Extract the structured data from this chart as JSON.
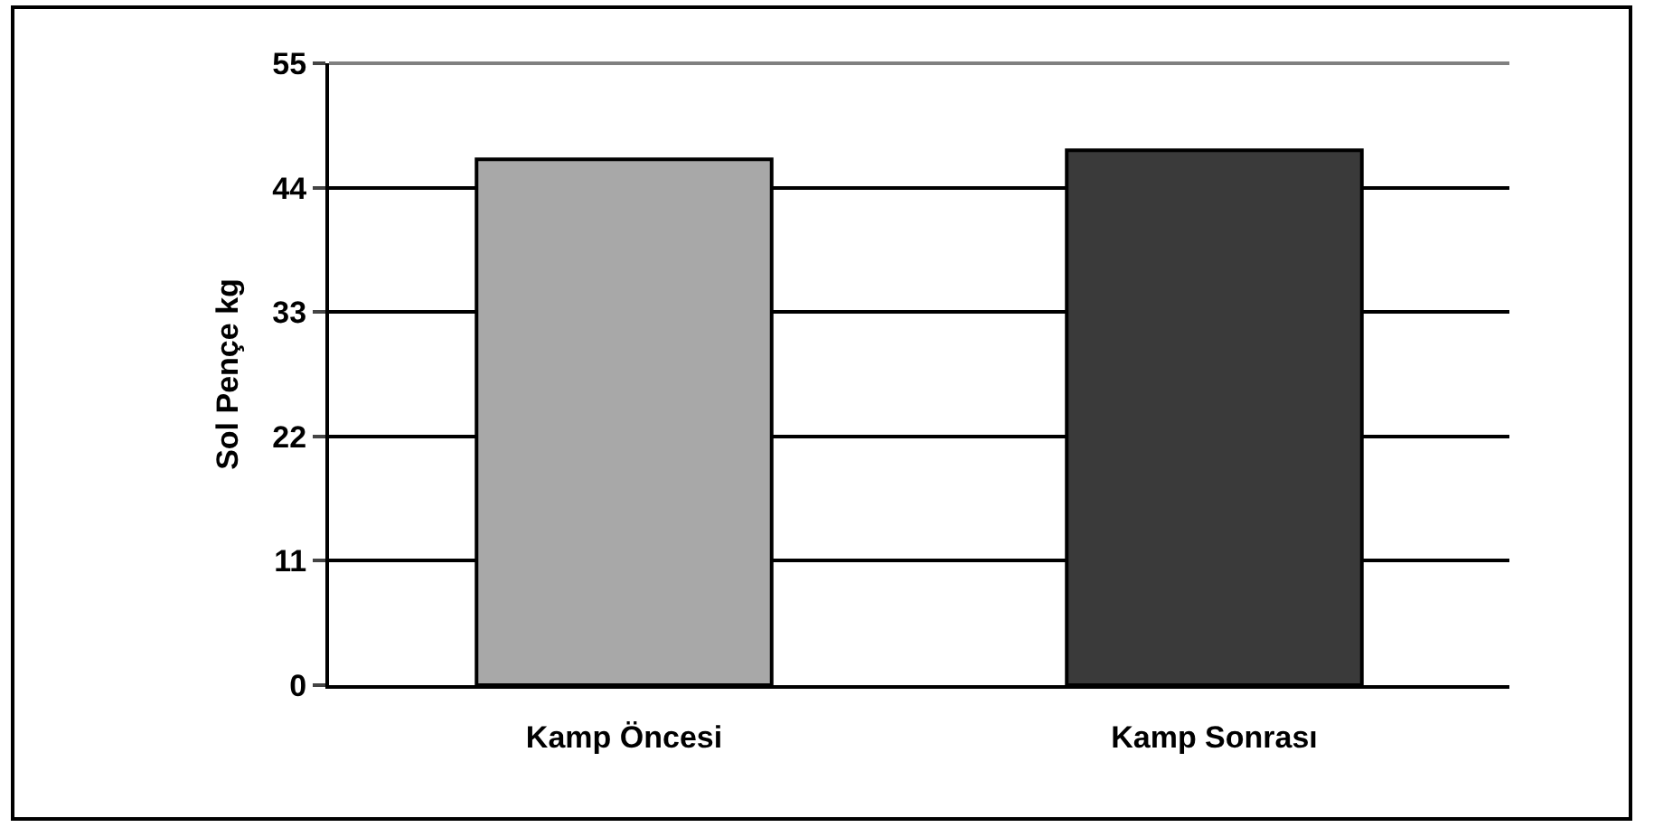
{
  "chart_data": {
    "type": "bar",
    "ylabel": "Sol Pençe kg",
    "categories": [
      "Kamp Öncesi",
      "Kamp Sonrası"
    ],
    "values": [
      46.5,
      47.3
    ],
    "colors": [
      "#a8a8a8",
      "#3a3a3a"
    ],
    "ylim": [
      0,
      55
    ],
    "yticks": [
      0,
      11,
      22,
      33,
      44,
      55
    ],
    "grid": "y"
  }
}
